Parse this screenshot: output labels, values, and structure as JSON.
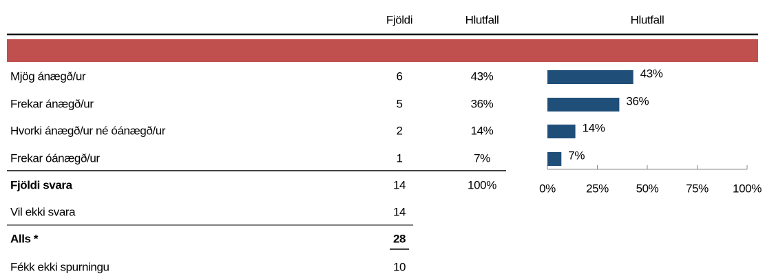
{
  "table": {
    "header": [
      "Fjöldi",
      "Hlutfall"
    ],
    "rows": [
      [
        "Mjög ánægð/ur",
        "6",
        "43%"
      ],
      [
        "Frekar ánægð/ur",
        "5",
        "36%"
      ],
      [
        "Hvorki ánægð/ur né óánægð/ur",
        "2",
        "14%"
      ],
      [
        "Frekar óánægð/ur",
        "1",
        "7%"
      ],
      [
        "Fjöldi svara",
        "14",
        "100%"
      ],
      [
        "Vil ekki svara",
        "14"
      ],
      [
        "Alls *",
        "28"
      ],
      [
        "Fékk ekki spurningu",
        "10"
      ]
    ]
  },
  "chart_data": {
    "type": "bar",
    "orientation": "horizontal",
    "title": "Hlutfall",
    "values": [
      43,
      36,
      14,
      7
    ],
    "value_labels": [
      "43%",
      "36%",
      "14%",
      "7%"
    ],
    "color": "#1f4e79",
    "xlim": [
      0,
      100
    ],
    "xticks": [
      {
        "value": 0,
        "label": "0%"
      },
      {
        "value": 25,
        "label": "25%"
      },
      {
        "value": 50,
        "label": "50%"
      },
      {
        "value": 75,
        "label": "75%"
      },
      {
        "value": 100,
        "label": "100%"
      }
    ]
  }
}
